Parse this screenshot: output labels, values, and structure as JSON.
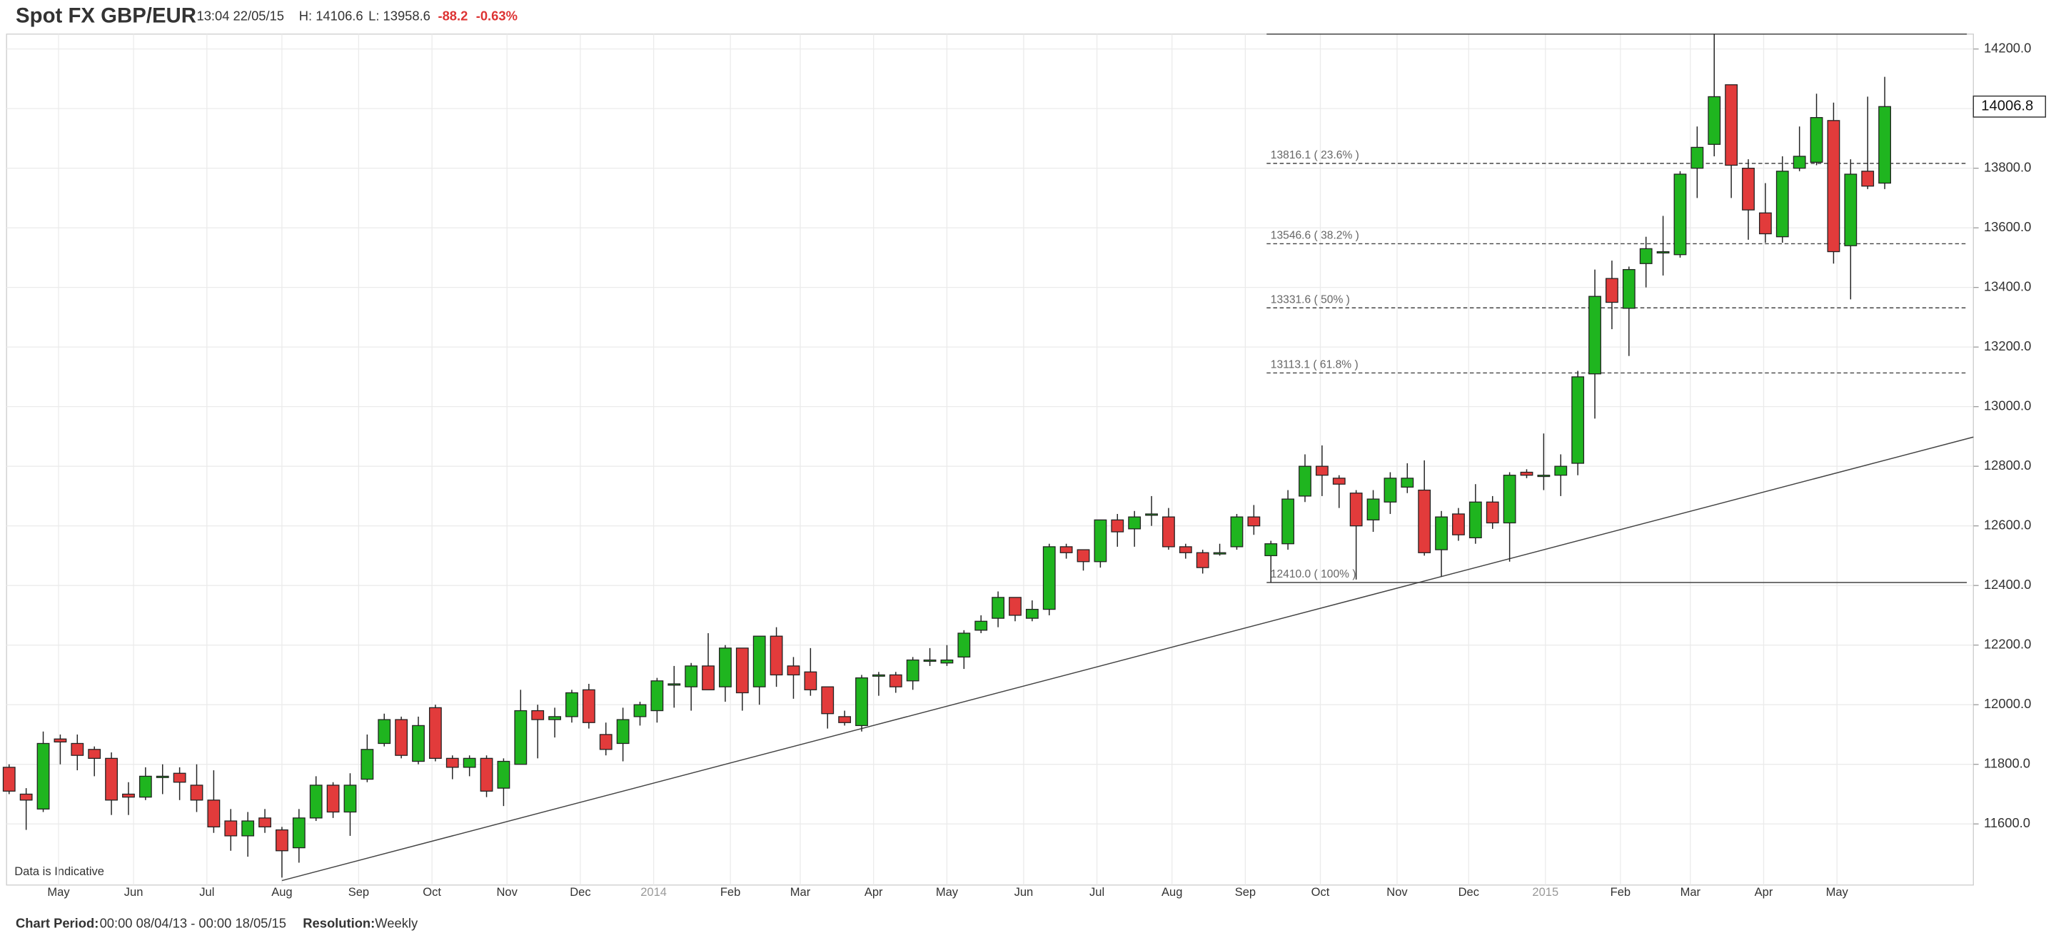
{
  "header": {
    "title": "Spot FX GBP/EUR",
    "time": "13:04 22/05/15",
    "high": "H: 14106.6",
    "low": "L: 13958.6",
    "change": "-88.2",
    "change_pct": "-0.63%"
  },
  "footer": {
    "period_label": "Chart Period:",
    "period": "00:00 08/04/13 - 00:00 18/05/15",
    "resolution_label": "Resolution:",
    "resolution": "Weekly"
  },
  "chart_data": {
    "type": "candlestick",
    "note": "Data is Indicative",
    "up_color": "#1fb51f",
    "down_color": "#e23b3b",
    "open": [
      11790,
      11700,
      11650,
      11885,
      11870,
      11850,
      11820,
      11700,
      11690,
      11760,
      11770,
      11730,
      11680,
      11610,
      11560,
      11620,
      11580,
      11520,
      11620,
      11730,
      11640,
      11750,
      11870,
      11950,
      11810,
      11990,
      11820,
      11790,
      11820,
      11720,
      11800,
      11980,
      11950,
      11960,
      12050,
      11900,
      11870,
      11960,
      11980,
      12070,
      12060,
      12130,
      12060,
      12190,
      12060,
      12230,
      12130,
      12110,
      12060,
      11960,
      11930,
      12100,
      12100,
      12080,
      12150,
      12140,
      12160,
      12250,
      12290,
      12360,
      12290,
      12320,
      12530,
      12520,
      12480,
      12620,
      12590,
      12640,
      12630,
      12530,
      12510,
      12510,
      12530,
      12630,
      12500,
      12540,
      12700,
      12800,
      12760,
      12710,
      12620,
      12680,
      12730,
      12720,
      12520,
      12640,
      12560,
      12680,
      12610,
      12780,
      12770,
      12770,
      12810,
      13110,
      13430,
      13330,
      13480,
      13520,
      13510,
      13800,
      13880,
      14080,
      13800,
      13650,
      13570,
      13800,
      13820,
      13960,
      13540,
      13790,
      13750
    ],
    "high": [
      11800,
      11720,
      11910,
      11900,
      11900,
      11860,
      11840,
      11740,
      11790,
      11800,
      11790,
      11800,
      11780,
      11650,
      11640,
      11650,
      11590,
      11650,
      11760,
      11740,
      11770,
      11900,
      11970,
      11960,
      11960,
      12000,
      11830,
      11830,
      11830,
      11820,
      12050,
      12000,
      11990,
      12050,
      12070,
      11940,
      11990,
      12010,
      12090,
      12130,
      12140,
      12240,
      12200,
      12190,
      12230,
      12260,
      12160,
      12190,
      12060,
      11980,
      12100,
      12110,
      12110,
      12160,
      12190,
      12200,
      12250,
      12300,
      12380,
      12360,
      12350,
      12540,
      12540,
      12520,
      12620,
      12640,
      12650,
      12700,
      12660,
      12540,
      12520,
      12540,
      12640,
      12670,
      12550,
      12720,
      12840,
      12870,
      12770,
      12720,
      12720,
      12780,
      12810,
      12820,
      12650,
      12660,
      12740,
      12700,
      12780,
      12790,
      12910,
      12840,
      13120,
      13460,
      13490,
      13470,
      13570,
      13640,
      13790,
      13940,
      14250,
      14080,
      13830,
      13750,
      13840,
      13940,
      14050,
      14020,
      13830,
      14040,
      14106.6
    ],
    "low": [
      11700,
      11580,
      11640,
      11800,
      11780,
      11760,
      11630,
      11630,
      11680,
      11700,
      11680,
      11640,
      11570,
      11510,
      11490,
      11570,
      11420,
      11470,
      11610,
      11620,
      11560,
      11740,
      11860,
      11820,
      11800,
      11810,
      11750,
      11760,
      11690,
      11660,
      11800,
      11820,
      11890,
      11940,
      11920,
      11830,
      11810,
      11930,
      11940,
      11990,
      11980,
      12050,
      12010,
      11980,
      12000,
      12060,
      12020,
      12030,
      11920,
      11930,
      11910,
      12030,
      12040,
      12050,
      12130,
      12130,
      12120,
      12240,
      12260,
      12280,
      12280,
      12300,
      12490,
      12450,
      12460,
      12530,
      12530,
      12600,
      12520,
      12490,
      12440,
      12500,
      12520,
      12570,
      12410,
      12520,
      12680,
      12700,
      12660,
      12420,
      12580,
      12640,
      12710,
      12500,
      12430,
      12550,
      12540,
      12590,
      12480,
      12760,
      12720,
      12700,
      12770,
      12960,
      13260,
      13170,
      13400,
      13440,
      13500,
      13700,
      13840,
      13700,
      13560,
      13550,
      13550,
      13790,
      13810,
      13480,
      13360,
      13730,
      13730
    ],
    "close": [
      11710,
      11680,
      11870,
      11875,
      11830,
      11820,
      11680,
      11690,
      11760,
      11760,
      11740,
      11680,
      11590,
      11560,
      11610,
      11590,
      11510,
      11620,
      11730,
      11640,
      11730,
      11850,
      11950,
      11830,
      11930,
      11820,
      11790,
      11820,
      11710,
      11810,
      11980,
      11950,
      11960,
      12040,
      11940,
      11850,
      11950,
      12000,
      12080,
      12070,
      12130,
      12050,
      12190,
      12040,
      12230,
      12100,
      12100,
      12050,
      11970,
      11940,
      12090,
      12100,
      12060,
      12150,
      12150,
      12150,
      12240,
      12280,
      12360,
      12300,
      12320,
      12530,
      12510,
      12480,
      12620,
      12580,
      12630,
      12640,
      12530,
      12510,
      12460,
      12510,
      12630,
      12600,
      12540,
      12690,
      12800,
      12770,
      12740,
      12600,
      12690,
      12760,
      12760,
      12510,
      12630,
      12570,
      12680,
      12610,
      12770,
      12770,
      12770,
      12800,
      13100,
      13370,
      13350,
      13460,
      13530,
      13520,
      13780,
      13870,
      14040,
      13810,
      13660,
      13580,
      13790,
      13840,
      13970,
      13520,
      13780,
      13740,
      14006.8
    ],
    "xlim": [
      -0.15,
      115.2
    ],
    "xticks": [
      {
        "value": 2.9,
        "label": "May"
      },
      {
        "value": 7.3,
        "label": "Jun"
      },
      {
        "value": 11.6,
        "label": "Jul"
      },
      {
        "value": 16,
        "label": "Aug"
      },
      {
        "value": 20.5,
        "label": "Sep"
      },
      {
        "value": 24.8,
        "label": "Oct"
      },
      {
        "value": 29.2,
        "label": "Nov"
      },
      {
        "value": 33.5,
        "label": "Dec"
      },
      {
        "value": 37.8,
        "label": "2014"
      },
      {
        "value": 42.3,
        "label": "Feb"
      },
      {
        "value": 46.4,
        "label": "Mar"
      },
      {
        "value": 50.7,
        "label": "Apr"
      },
      {
        "value": 55,
        "label": "May"
      },
      {
        "value": 59.5,
        "label": "Jun"
      },
      {
        "value": 63.8,
        "label": "Jul"
      },
      {
        "value": 68.2,
        "label": "Aug"
      },
      {
        "value": 72.5,
        "label": "Sep"
      },
      {
        "value": 76.9,
        "label": "Oct"
      },
      {
        "value": 81.4,
        "label": "Nov"
      },
      {
        "value": 85.6,
        "label": "Dec"
      },
      {
        "value": 90.1,
        "label": "2015"
      },
      {
        "value": 94.5,
        "label": "Feb"
      },
      {
        "value": 98.6,
        "label": "Mar"
      },
      {
        "value": 102.9,
        "label": "Apr"
      },
      {
        "value": 107.2,
        "label": "May"
      }
    ],
    "ylim": [
      11395,
      14250
    ],
    "yticks": [
      {
        "value": 11600,
        "label": "11600.0"
      },
      {
        "value": 11800,
        "label": "11800.0"
      },
      {
        "value": 12000,
        "label": "12000.0"
      },
      {
        "value": 12200,
        "label": "12200.0"
      },
      {
        "value": 12400,
        "label": "12400.0"
      },
      {
        "value": 12600,
        "label": "12600.0"
      },
      {
        "value": 12800,
        "label": "12800.0"
      },
      {
        "value": 13000,
        "label": "13000.0"
      },
      {
        "value": 13200,
        "label": "13200.0"
      },
      {
        "value": 13400,
        "label": "13400.0"
      },
      {
        "value": 13600,
        "label": "13600.0"
      },
      {
        "value": 13800,
        "label": "13800.0"
      },
      {
        "value": 14000,
        "label": "14000.0"
      },
      {
        "value": 14200,
        "label": "14200.0"
      }
    ],
    "grid": true,
    "fib_levels": [
      {
        "value": 13816.1,
        "label": "13816.1 ( 23.6% )"
      },
      {
        "value": 13546.6,
        "label": "13546.6 ( 38.2% )"
      },
      {
        "value": 13331.6,
        "label": "13331.6 ( 50% )"
      },
      {
        "value": 13113.1,
        "label": "13113.1 ( 61.8% )"
      },
      {
        "value": 12410.0,
        "label": "12410.0 ( 100% )"
      }
    ],
    "trendline": {
      "x": [
        16,
        115.2
      ],
      "y": [
        11410,
        12898
      ]
    }
  }
}
